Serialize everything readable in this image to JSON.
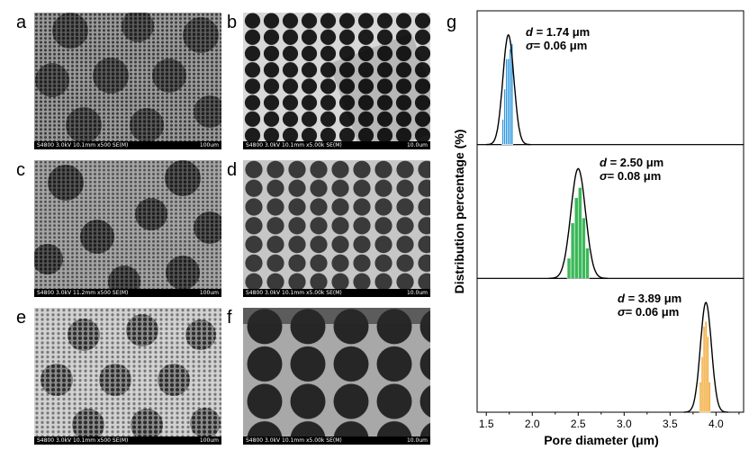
{
  "panels": [
    {
      "letter": "a",
      "info": "S4800 3.0kV 10.1mm x500 SE(M)",
      "scale": "100um"
    },
    {
      "letter": "b",
      "info": "S4800 3.0kV 10.1mm x5.00k SE(M)",
      "scale": "10.0um"
    },
    {
      "letter": "c",
      "info": "S4800 3.0kV 11.2mm x500 SE(M)",
      "scale": "100um"
    },
    {
      "letter": "d",
      "info": "S4800 3.0kV 10.1mm x5.00k SE(M)",
      "scale": "10.0um"
    },
    {
      "letter": "e",
      "info": "S4800 3.0kV 10.1mm x500 SE(M)",
      "scale": "100um"
    },
    {
      "letter": "f",
      "info": "S4800 3.0kV 10.1mm x5.00k SE(M)",
      "scale": "10.0um"
    }
  ],
  "chart_letter": "g",
  "stats": [
    {
      "d_label": "d",
      "d_value": "= 1.74 μm",
      "s_label": "σ",
      "s_value": "= 0.06 μm"
    },
    {
      "d_label": "d",
      "d_value": "= 2.50 μm",
      "s_label": "σ",
      "s_value": "= 0.08 μm"
    },
    {
      "d_label": "d",
      "d_value": "= 3.89 μm",
      "s_label": "σ",
      "s_value": "= 0.06 μm"
    }
  ],
  "chart_data": {
    "type": "bar",
    "xlabel": "Pore diameter (μm)",
    "ylabel": "Distribution percentage (%)",
    "xlim": [
      1.4,
      4.3
    ],
    "xticks": [
      "1.5",
      "2.0",
      "2.5",
      "3.0",
      "3.5",
      "4.0"
    ],
    "series": [
      {
        "mean": 1.74,
        "sigma": 0.06,
        "color": "#3399e0",
        "bins": [
          1.68,
          1.7,
          1.72,
          1.74,
          1.76,
          1.78
        ],
        "values": [
          0.25,
          0.55,
          0.85,
          0.85,
          0.95,
          1.0
        ]
      },
      {
        "mean": 2.5,
        "sigma": 0.08,
        "color": "#3cb85a",
        "bins": [
          2.4,
          2.44,
          2.48,
          2.52,
          2.56,
          2.6
        ],
        "values": [
          0.2,
          0.55,
          0.8,
          0.9,
          0.6,
          0.3
        ]
      },
      {
        "mean": 3.89,
        "sigma": 0.06,
        "color": "#f0a020",
        "bins": [
          3.83,
          3.85,
          3.87,
          3.89,
          3.91,
          3.93
        ],
        "values": [
          0.3,
          0.55,
          0.85,
          0.9,
          0.75,
          0.3
        ]
      }
    ]
  }
}
